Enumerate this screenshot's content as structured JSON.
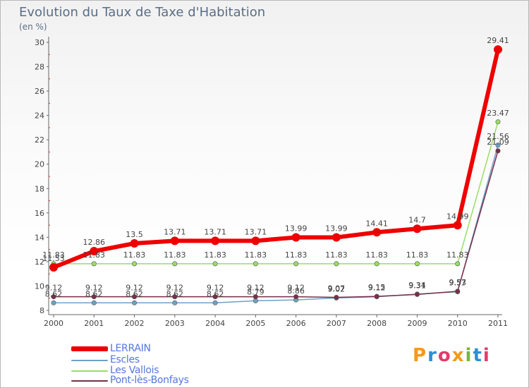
{
  "header": {
    "title": "Evolution du Taux de Taxe d'Habitation",
    "unit": "(en %)"
  },
  "logo": {
    "text": "Proxiti"
  },
  "chart_data": {
    "type": "line",
    "title": "Evolution du Taux de Taxe d'Habitation",
    "ylabel": "(en %)",
    "xlabel": "",
    "ylim": [
      8,
      30
    ],
    "yticks": [
      8,
      10,
      12,
      14,
      16,
      18,
      20,
      22,
      24,
      26,
      28,
      30
    ],
    "categories": [
      "2000",
      "2001",
      "2002",
      "2003",
      "2004",
      "2005",
      "2006",
      "2007",
      "2008",
      "2009",
      "2010",
      "2011"
    ],
    "grid": false,
    "legend_position": "bottom-left",
    "series": [
      {
        "name": "LERRAIN",
        "color": "#ee0000",
        "values": [
          11.53,
          12.86,
          13.5,
          13.71,
          13.71,
          13.71,
          13.99,
          13.99,
          14.41,
          14.7,
          14.99,
          29.41
        ],
        "labels": [
          "11.53",
          "12.86",
          "13.5",
          "13.71",
          "13.71",
          "13.71",
          "13.99",
          "13.99",
          "14.41",
          "14.7",
          "14.99",
          "29.41"
        ]
      },
      {
        "name": "Escles",
        "color": "#6fa0c8",
        "values": [
          8.62,
          8.62,
          8.62,
          8.62,
          8.62,
          8.79,
          8.86,
          9.02,
          9.12,
          9.34,
          9.53,
          21.56
        ],
        "labels": [
          "8.62",
          "8.62",
          "8.62",
          "8.62",
          "8.62",
          "8.79",
          "8.86",
          "9.02",
          "9.12",
          "9.34",
          "9.53",
          "21.56"
        ]
      },
      {
        "name": "Les Vallois",
        "color": "#99dd66",
        "values": [
          11.83,
          11.83,
          11.83,
          11.83,
          11.83,
          11.83,
          11.83,
          11.83,
          11.83,
          11.83,
          11.83,
          23.47
        ],
        "labels": [
          "11.83",
          "11.83",
          "11.83",
          "11.83",
          "11.83",
          "11.83",
          "11.83",
          "11.83",
          "11.83",
          "11.83",
          "11.83",
          "23.47"
        ]
      },
      {
        "name": "Pont-lès-Bonfays",
        "color": "#7a2e48",
        "values": [
          9.12,
          9.12,
          9.12,
          9.12,
          9.12,
          9.12,
          9.12,
          9.07,
          9.15,
          9.31,
          9.57,
          21.09
        ],
        "labels": [
          "9.12",
          "9.12",
          "9.12",
          "9.12",
          "9.12",
          "9.12",
          "9.12",
          "9.07",
          "9.15",
          "9.31",
          "9.57",
          "21.09"
        ]
      }
    ]
  }
}
